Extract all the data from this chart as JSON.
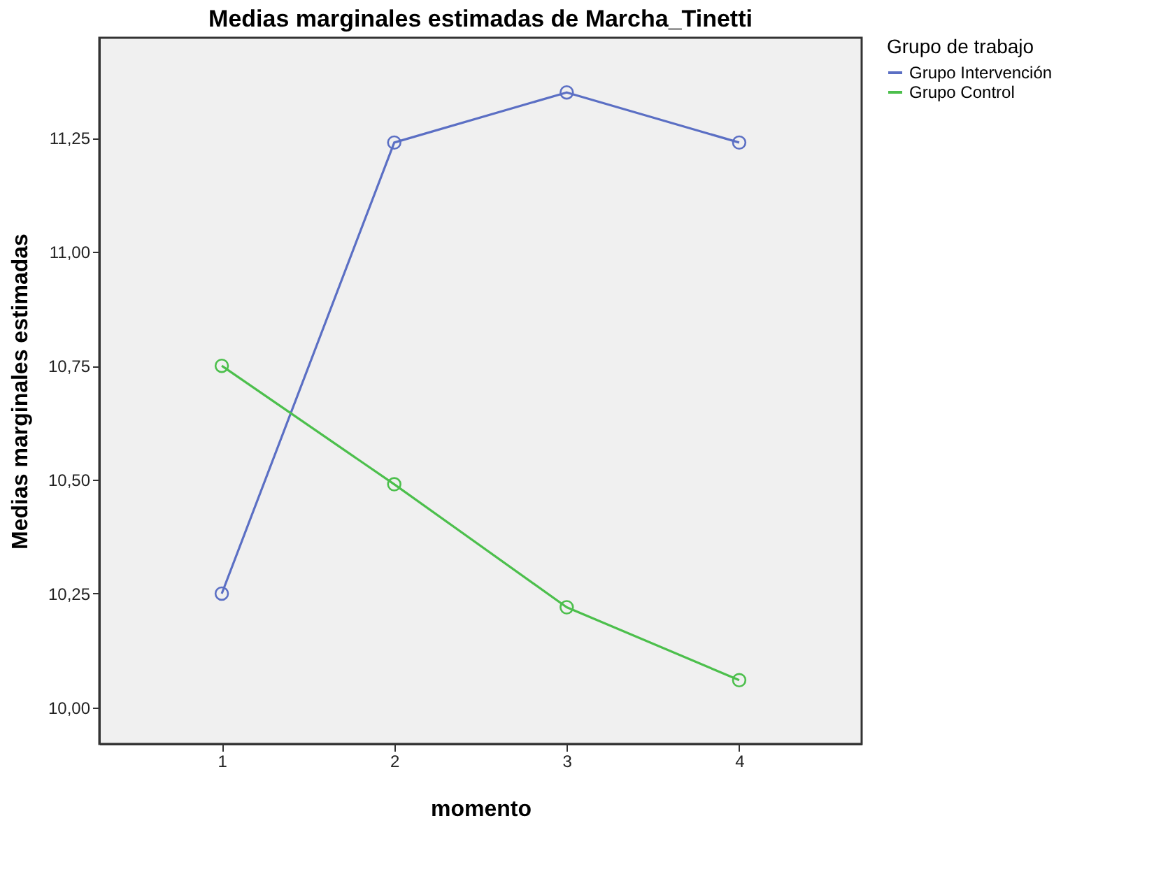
{
  "chart_data": {
    "type": "line",
    "title": "Medias marginales estimadas de Marcha_Tinetti",
    "xlabel": "momento",
    "ylabel": "Medias marginales estimadas",
    "legend_title": "Grupo de trabajo",
    "x": [
      1,
      2,
      3,
      4
    ],
    "series": [
      {
        "name": "Grupo Intervención",
        "color": "#5b6fc4",
        "values": [
          10.25,
          11.24,
          11.35,
          11.24
        ]
      },
      {
        "name": "Grupo Control",
        "color": "#4cbf4c",
        "values": [
          10.75,
          10.49,
          10.22,
          10.06
        ]
      }
    ],
    "xlim": [
      0.29,
      4.71
    ],
    "xticks": [
      1,
      2,
      3,
      4
    ],
    "ylim": [
      9.92,
      11.47
    ],
    "yticks": [
      {
        "value": 10.0,
        "label": "10,00"
      },
      {
        "value": 10.25,
        "label": "10,25"
      },
      {
        "value": 10.5,
        "label": "10,50"
      },
      {
        "value": 10.75,
        "label": "10,75"
      },
      {
        "value": 11.0,
        "label": "11,00"
      },
      {
        "value": 11.25,
        "label": "11,25"
      }
    ],
    "grid": false,
    "legend": "top right",
    "marker": "circle",
    "line_style": "solid"
  }
}
